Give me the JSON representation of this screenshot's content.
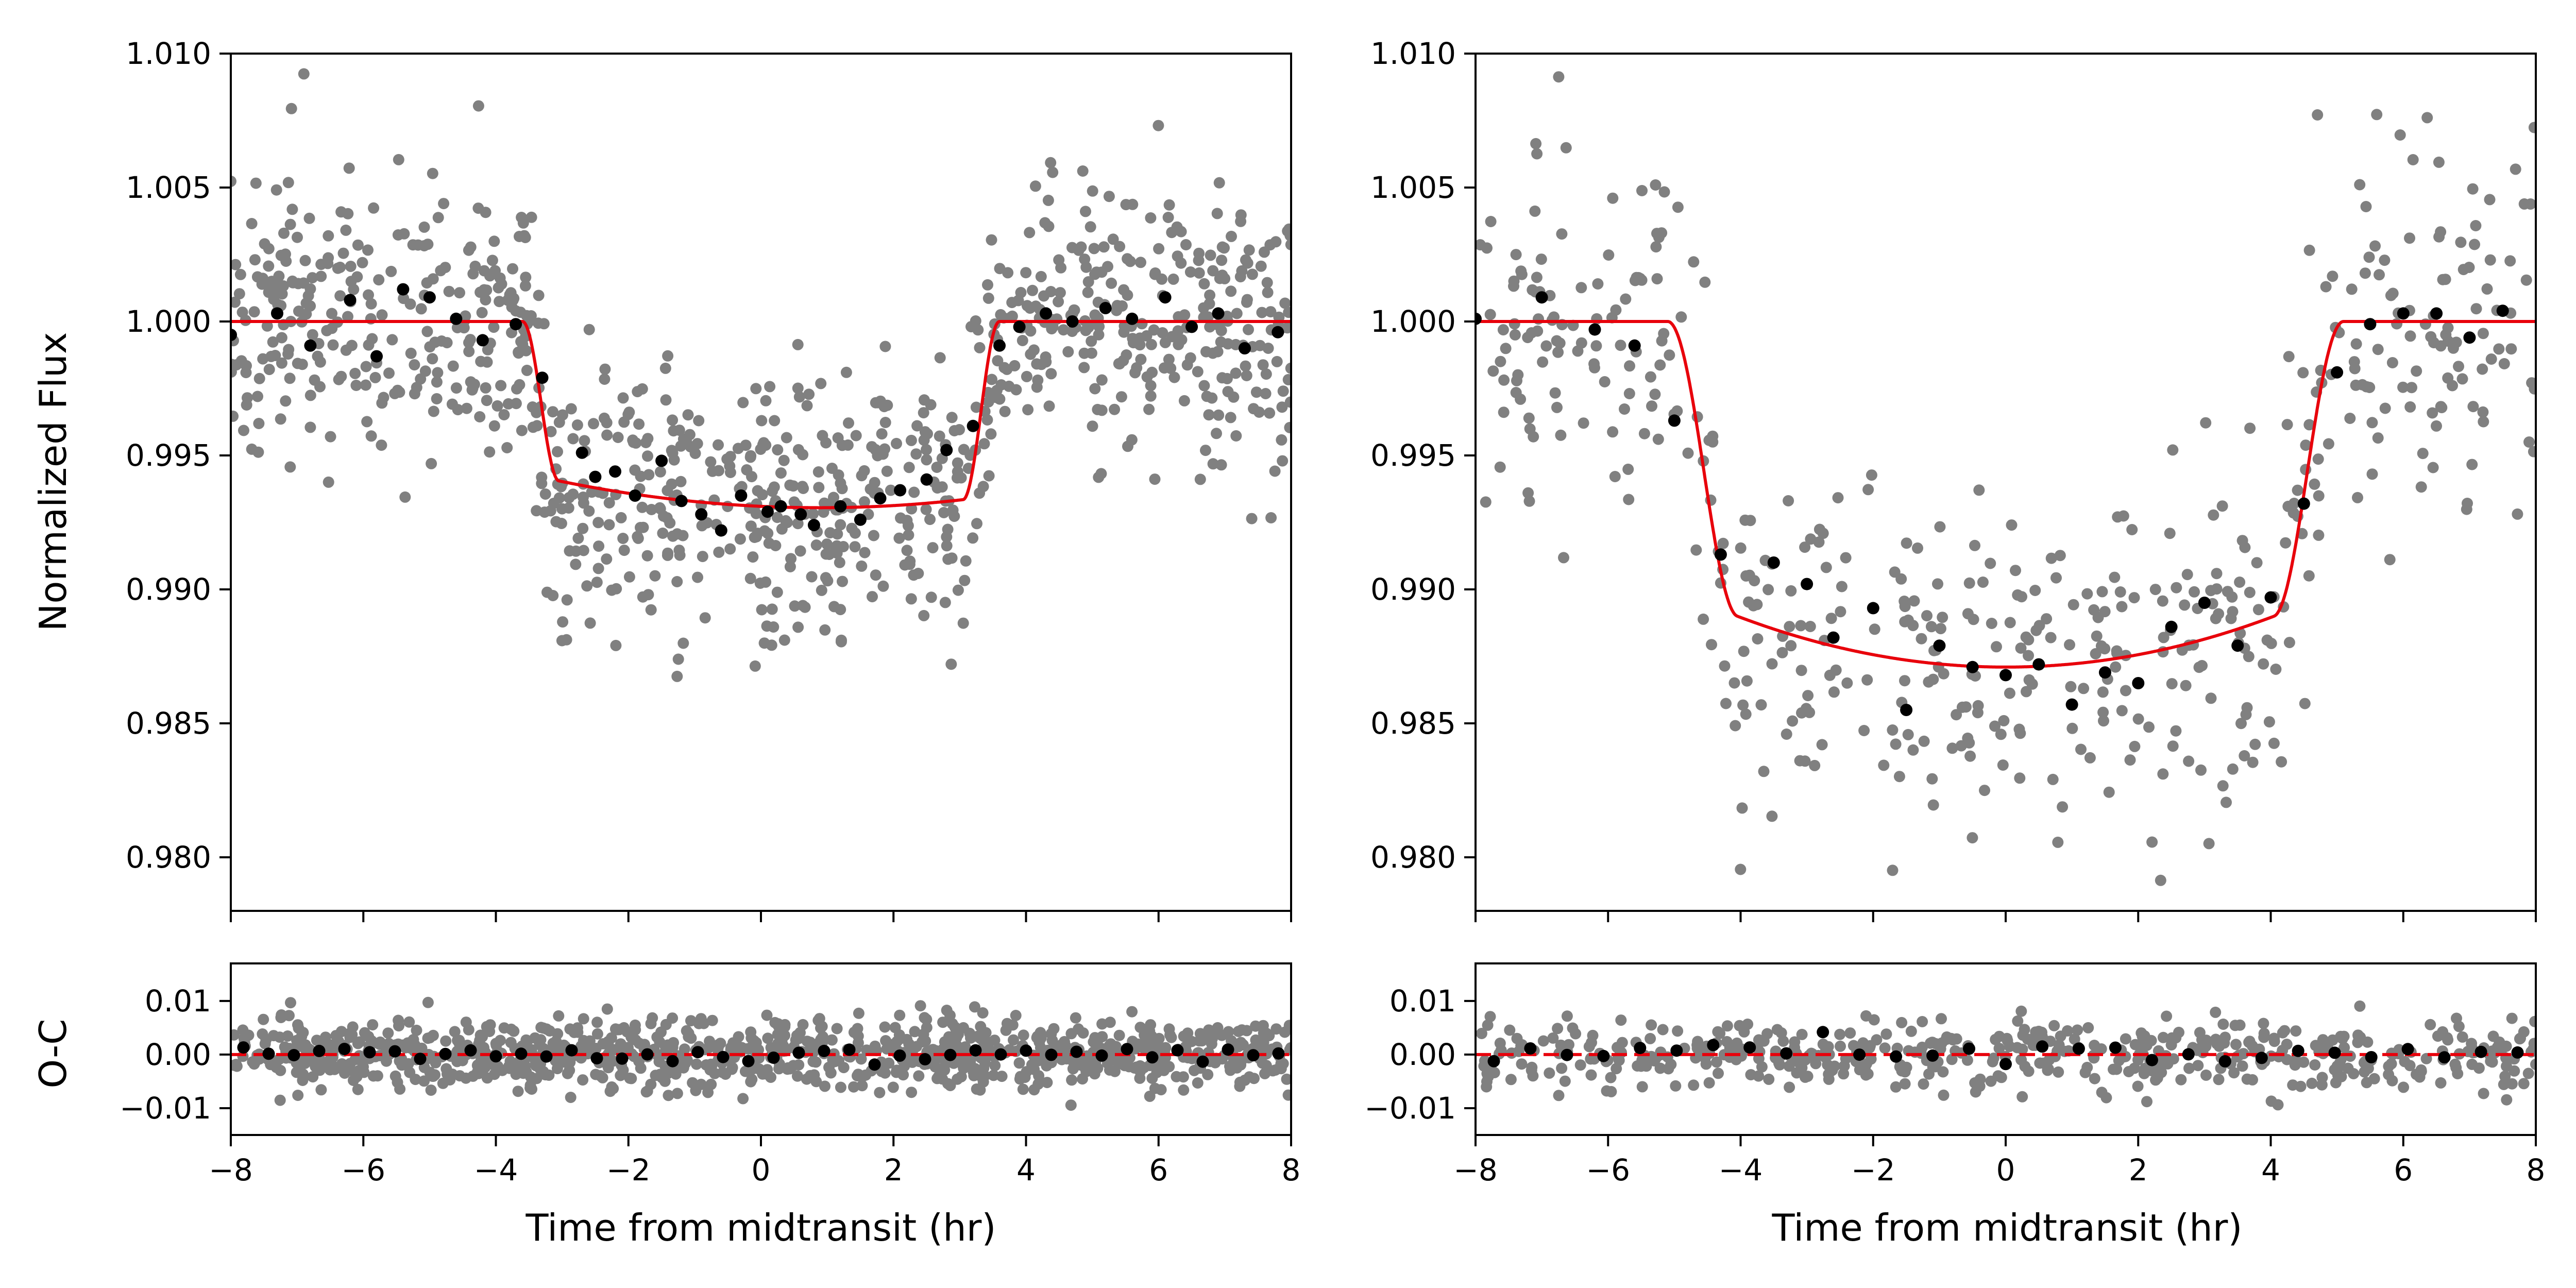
{
  "colors": {
    "raw_points": "#808080",
    "binned_points": "#000000",
    "model_line": "#e8000b",
    "axes": "#000000"
  },
  "chart_data": [
    {
      "type": "scatter",
      "panel": "left-top",
      "title": "",
      "xlabel": "",
      "ylabel": "Normalized Flux",
      "xlim": [
        -8,
        8
      ],
      "ylim": [
        0.978,
        1.01
      ],
      "xticks": [
        -8,
        -6,
        -4,
        -2,
        0,
        2,
        4,
        6,
        8
      ],
      "yticks": [
        0.98,
        0.985,
        0.99,
        0.995,
        1.0,
        1.005,
        1.01
      ],
      "ytick_labels": [
        "0.980",
        "0.985",
        "0.990",
        "0.995",
        "1.000",
        "1.005",
        "1.010"
      ],
      "model": {
        "depth": 0.0069,
        "t14_half": 3.6,
        "ingress": 0.55,
        "curvature": 0.0006,
        "asym": 0.00035
      },
      "raw": {
        "n": 1000,
        "sigma": 0.0026,
        "seed": 11
      },
      "binned_x": [
        -8.0,
        -7.3,
        -6.8,
        -6.2,
        -5.8,
        -5.4,
        -5.0,
        -4.6,
        -4.2,
        -3.7,
        -3.3,
        -2.7,
        -2.5,
        -2.2,
        -1.9,
        -1.5,
        -1.2,
        -0.9,
        -0.6,
        -0.3,
        0.1,
        0.3,
        0.6,
        0.8,
        1.2,
        1.5,
        1.8,
        2.1,
        2.5,
        2.8,
        3.2,
        3.6,
        3.9,
        4.3,
        4.7,
        5.2,
        5.6,
        6.1,
        6.5,
        6.9,
        7.3,
        7.8
      ],
      "binned_y": [
        0.9995,
        1.0003,
        0.9991,
        1.0008,
        0.9987,
        1.0012,
        1.0009,
        1.0001,
        0.9993,
        0.9999,
        0.9979,
        0.9951,
        0.9942,
        0.9944,
        0.9935,
        0.9948,
        0.9933,
        0.9928,
        0.9922,
        0.9935,
        0.9929,
        0.9931,
        0.9928,
        0.9924,
        0.9931,
        0.9926,
        0.9934,
        0.9937,
        0.9941,
        0.9952,
        0.9961,
        0.9991,
        0.9998,
        1.0003,
        1.0,
        1.0005,
        1.0001,
        1.0009,
        0.9998,
        1.0003,
        0.999,
        0.9996
      ]
    },
    {
      "type": "scatter",
      "panel": "right-top",
      "title": "",
      "xlabel": "",
      "ylabel": "",
      "xlim": [
        -8,
        8
      ],
      "ylim": [
        0.978,
        1.01
      ],
      "xticks": [
        -8,
        -6,
        -4,
        -2,
        0,
        2,
        4,
        6,
        8
      ],
      "yticks": [
        0.98,
        0.985,
        0.99,
        0.995,
        1.0,
        1.005,
        1.01
      ],
      "ytick_labels": [
        "0.980",
        "0.985",
        "0.990",
        "0.995",
        "1.000",
        "1.005",
        "1.010"
      ],
      "model": {
        "depth": 0.0129,
        "t14_half": 5.1,
        "ingress": 1.05,
        "curvature": 0.0019,
        "asym": 0.0
      },
      "raw": {
        "n": 520,
        "sigma": 0.0032,
        "seed": 23
      },
      "binned_x": [
        -8.0,
        -7.0,
        -6.2,
        -5.6,
        -5.0,
        -4.3,
        -3.5,
        -3.0,
        -2.6,
        -2.0,
        -1.5,
        -1.0,
        -0.5,
        0.0,
        0.5,
        1.0,
        1.5,
        2.0,
        2.5,
        3.0,
        3.5,
        4.0,
        4.5,
        5.0,
        5.5,
        6.0,
        6.5,
        7.0,
        7.5
      ],
      "binned_y": [
        1.0001,
        1.0009,
        0.9997,
        0.9991,
        0.9963,
        0.9913,
        0.991,
        0.9902,
        0.9882,
        0.9893,
        0.9855,
        0.9879,
        0.9871,
        0.9868,
        0.9872,
        0.9857,
        0.9869,
        0.9865,
        0.9886,
        0.9895,
        0.9879,
        0.9897,
        0.9932,
        0.9981,
        0.9999,
        1.0003,
        1.0003,
        0.9994,
        1.0004
      ]
    },
    {
      "type": "scatter",
      "panel": "left-bottom",
      "title": "",
      "xlabel": "Time from midtransit (hr)",
      "ylabel": "O-C",
      "xlim": [
        -8,
        8
      ],
      "ylim": [
        -0.015,
        0.017
      ],
      "xticks": [
        -8,
        -6,
        -4,
        -2,
        0,
        2,
        4,
        6,
        8
      ],
      "yticks": [
        -0.01,
        0.0,
        0.01
      ],
      "ytick_labels": [
        "−0.01",
        "0.00",
        "0.01"
      ],
      "residual_line": 0.0,
      "raw": {
        "n": 1000,
        "sigma": 0.0032,
        "seed": 37
      },
      "binned": {
        "n": 42,
        "sigma": 0.0008,
        "seed": 41
      }
    },
    {
      "type": "scatter",
      "panel": "right-bottom",
      "title": "",
      "xlabel": "Time from midtransit (hr)",
      "ylabel": "",
      "xlim": [
        -8,
        8
      ],
      "ylim": [
        -0.015,
        0.017
      ],
      "xticks": [
        -8,
        -6,
        -4,
        -2,
        0,
        2,
        4,
        6,
        8
      ],
      "yticks": [
        -0.01,
        0.0,
        0.01
      ],
      "ytick_labels": [
        "−0.01",
        "0.00",
        "0.01"
      ],
      "residual_line": 0.0,
      "raw": {
        "n": 520,
        "sigma": 0.0033,
        "seed": 53
      },
      "binned": {
        "n": 29,
        "sigma": 0.0011,
        "seed": 59
      }
    }
  ],
  "xtick_labels": [
    "−8",
    "−6",
    "−4",
    "−2",
    "0",
    "2",
    "4",
    "6",
    "8"
  ]
}
